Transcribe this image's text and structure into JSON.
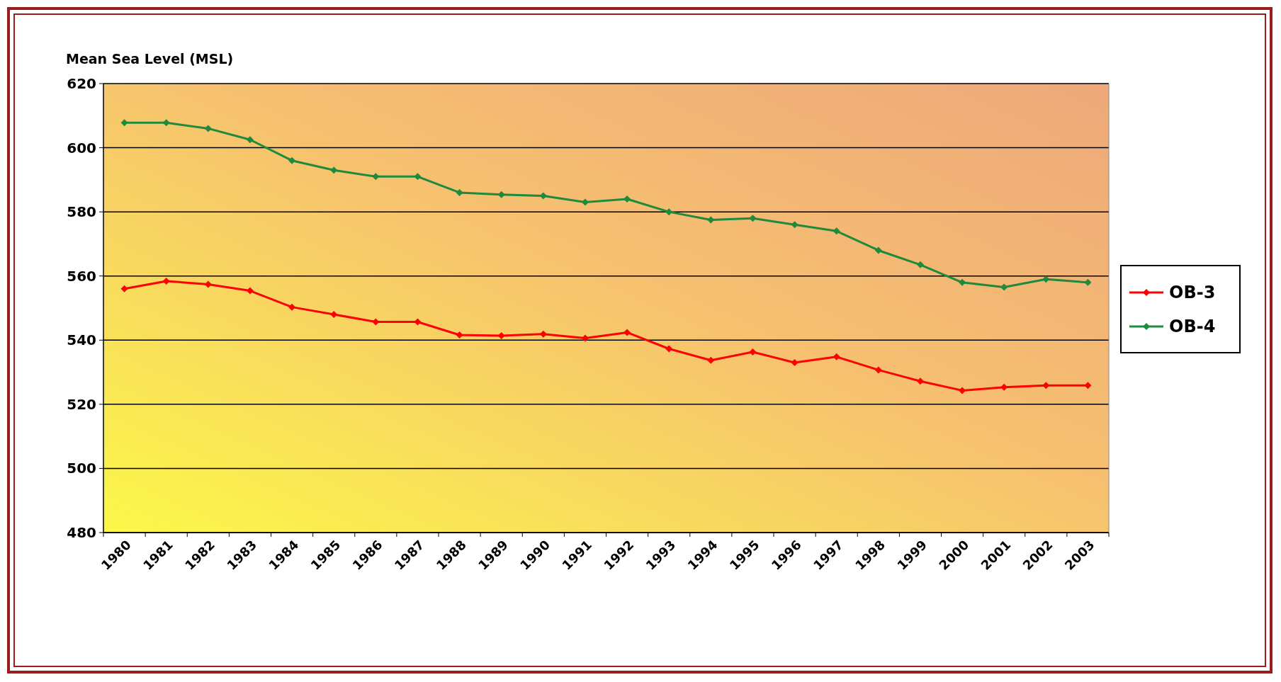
{
  "chart_data": {
    "type": "line",
    "ylabel": "Mean Sea Level (MSL)",
    "categories": [
      "1980",
      "1981",
      "1982",
      "1983",
      "1984",
      "1985",
      "1986",
      "1987",
      "1988",
      "1989",
      "1990",
      "1991",
      "1992",
      "1993",
      "1994",
      "1995",
      "1996",
      "1997",
      "1998",
      "1999",
      "2000",
      "2001",
      "2002",
      "2003"
    ],
    "series": [
      {
        "name": "OB-3",
        "color": "#ff0000",
        "values": [
          556,
          558.4,
          557.4,
          555.4,
          550.3,
          548,
          545.7,
          545.7,
          541.6,
          541.4,
          541.9,
          540.6,
          542.4,
          537.3,
          533.7,
          536.3,
          533,
          534.8,
          530.7,
          527.2,
          524.3,
          525.3,
          525.9,
          525.9
        ]
      },
      {
        "name": "OB-4",
        "color": "#1e8a3c",
        "values": [
          607.8,
          607.8,
          606,
          602.5,
          596,
          593,
          591,
          591,
          586,
          585.4,
          585,
          583,
          584,
          580,
          577.5,
          578,
          576,
          574,
          568,
          563.5,
          558,
          556.5,
          559,
          558
        ]
      }
    ],
    "ylim": [
      480,
      620
    ],
    "yticks": [
      480,
      500,
      520,
      540,
      560,
      580,
      600,
      620
    ],
    "grid": "y",
    "legend": "right",
    "marker": "diamond",
    "line_style": "solid"
  }
}
